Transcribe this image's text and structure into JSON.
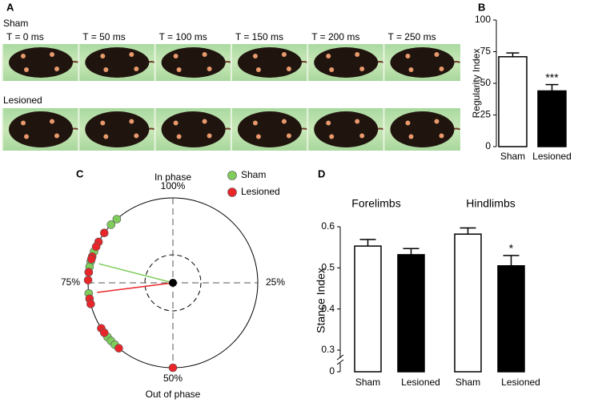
{
  "photo_strip": {
    "letter": "A",
    "rows": [
      "Sham",
      "Lesioned"
    ],
    "frames": [
      "T = 0 ms",
      "T = 50 ms",
      "T = 100 ms",
      "T = 150 ms",
      "T = 200 ms",
      "T = 250 ms"
    ]
  },
  "chart_data": [
    {
      "type": "bar",
      "letter": "B",
      "ylabel": "Regularity Index",
      "categories": [
        "Sham",
        "Lesioned"
      ],
      "values": [
        71,
        44
      ],
      "errors": [
        3,
        5
      ],
      "colors": [
        "#ffffff",
        "#000000"
      ],
      "ylim": [
        0,
        100
      ],
      "yticks": [
        0,
        25,
        50,
        75,
        100
      ],
      "annotations": [
        {
          "category": 1,
          "text": "***"
        }
      ]
    },
    {
      "type": "polar",
      "letter": "C",
      "top_label": "In phase",
      "bottom_label": "Out of phase",
      "ticks": [
        {
          "value": 100,
          "label": "100%"
        },
        {
          "value": 25,
          "label": "25%"
        },
        {
          "value": 50,
          "label": "50%"
        },
        {
          "value": 75,
          "label": "75%"
        }
      ],
      "series": [
        {
          "name": "Sham",
          "color": "#7fcc5c",
          "values": [
            88.5,
            87,
            81,
            79,
            78,
            77,
            73,
            64,
            63,
            62
          ],
          "mean_phase": 79,
          "mean_length": 0.9
        },
        {
          "name": "Lesioned",
          "color": "#e8262a",
          "values": [
            85,
            83,
            82,
            80,
            79.5,
            77,
            75.5,
            72,
            71,
            66,
            65,
            61,
            50
          ],
          "mean_phase": 73,
          "mean_length": 0.9
        }
      ]
    },
    {
      "type": "grouped_bar",
      "letter": "D",
      "ylabel": "Stance Index",
      "groups": [
        "Forelimbs",
        "Hindlimbs"
      ],
      "series": [
        {
          "name": "Sham",
          "color": "#ffffff",
          "values": [
            0.553,
            0.582
          ],
          "errors": [
            0.016,
            0.015
          ]
        },
        {
          "name": "Lesioned",
          "color": "#000000",
          "values": [
            0.532,
            0.505
          ],
          "errors": [
            0.015,
            0.025
          ]
        }
      ],
      "ylim": [
        0.3,
        0.6
      ],
      "axis_break": true,
      "yticks": [
        0,
        0.3,
        0.4,
        0.5,
        0.6
      ],
      "annotations": [
        {
          "group": 1,
          "series": 1,
          "text": "*"
        }
      ]
    }
  ]
}
